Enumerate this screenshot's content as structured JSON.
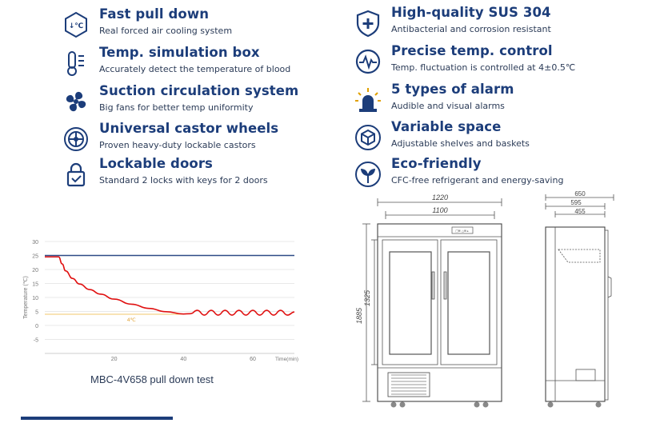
{
  "features": [
    {
      "icon": "thermometer-down-icon",
      "title": "Fast pull down",
      "desc": "Real forced air cooling system",
      "icon_text": "↓℃"
    },
    {
      "icon": "temp-box-icon",
      "title": "Temp. simulation box",
      "desc": "Accurately detect the temperature of blood"
    },
    {
      "icon": "fan-icon",
      "title": "Suction circulation system",
      "desc": "Big fans for better temp uniformity"
    },
    {
      "icon": "castor-wheel-icon",
      "title": "Universal castor wheels",
      "desc": "Proven heavy-duty lockable castors"
    },
    {
      "icon": "lock-icon",
      "title": "Lockable doors",
      "desc": "Standard 2 locks with keys for 2 doors"
    },
    {
      "icon": "shield-plus-icon",
      "title": "High-quality SUS 304",
      "desc": "Antibacterial and corrosion resistant"
    },
    {
      "icon": "pulse-icon",
      "title": "Precise temp. control",
      "desc": "Temp. fluctuation is controlled at 4±0.5℃"
    },
    {
      "icon": "alarm-light-icon",
      "title": "5 types of alarm",
      "desc": "Audible and visual alarms"
    },
    {
      "icon": "cube-icon",
      "title": "Variable space",
      "desc": "Adjustable shelves and baskets"
    },
    {
      "icon": "leaf-icon",
      "title": "Eco-friendly",
      "desc": "CFC-free refrigerant and energy-saving"
    }
  ],
  "chart_caption": "MBC-4V658 pull down test",
  "chart_data": {
    "type": "line",
    "title": "",
    "ylabel": "Temperature (℃)",
    "xlabel": "Time(min)",
    "xlim": [
      0,
      72
    ],
    "ylim": [
      -10,
      30
    ],
    "yticks": [
      30,
      25,
      20,
      15,
      10,
      5,
      0,
      -5
    ],
    "xticks": [
      20,
      40,
      60
    ],
    "annotation": "4℃",
    "series": [
      {
        "color": "#2e4a86",
        "x": [
          0,
          72
        ],
        "y": [
          25,
          25
        ]
      },
      {
        "color": "#f2c76b",
        "x": [
          0,
          40
        ],
        "y": [
          4,
          4
        ]
      },
      {
        "color": "#e01010",
        "x": [
          0,
          4,
          5,
          6,
          8,
          10,
          13,
          16,
          20,
          25,
          30,
          35,
          40,
          42,
          44,
          46,
          48,
          50,
          52,
          54,
          56,
          58,
          60,
          62,
          64,
          66,
          68,
          70,
          72
        ],
        "y": [
          24.5,
          24.5,
          22,
          19.5,
          16.8,
          14.8,
          12.8,
          11.2,
          9.4,
          7.6,
          6.1,
          4.9,
          4.1,
          4.2,
          5.4,
          3.7,
          5.4,
          3.7,
          5.4,
          3.7,
          5.4,
          3.7,
          5.4,
          3.7,
          5.4,
          3.7,
          5.4,
          3.7,
          4.8
        ]
      }
    ]
  },
  "front_view": {
    "width_outer": "1220",
    "width_inner": "1100",
    "height_outer": "1885",
    "height_inner": "1325",
    "display": "□≡ ⌂≡∘"
  },
  "side_view": {
    "depth_outer": "650",
    "depth_mid": "595",
    "depth_inner": "455"
  },
  "colors": {
    "accent": "#1c3d7a",
    "desc": "#2b3b57",
    "curve": "#e01010"
  }
}
